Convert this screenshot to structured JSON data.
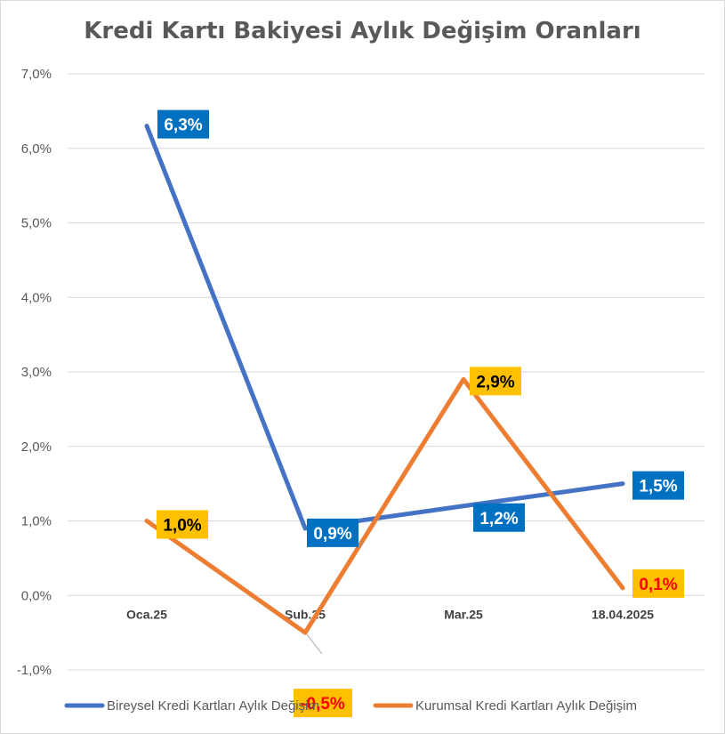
{
  "chart_data": {
    "type": "line",
    "title": "Kredi Kartı Bakiyesi Aylık Değişim Oranları",
    "categories": [
      "Oca.25",
      "Şub.25",
      "Mar.25",
      "18.04.2025"
    ],
    "yticks": [
      "-1,0%",
      "0,0%",
      "1,0%",
      "2,0%",
      "3,0%",
      "4,0%",
      "5,0%",
      "6,0%",
      "7,0%"
    ],
    "ylim": [
      -1,
      7
    ],
    "grid": true,
    "legend_position": "bottom",
    "series": [
      {
        "name": "Bireysel Kredi Kartları Aylık Değişim",
        "color": "#4472c4",
        "values": [
          6.3,
          0.9,
          1.2,
          1.5
        ],
        "labels": [
          "6,3%",
          "0,9%",
          "1,2%",
          "1,5%"
        ],
        "label_bg": "#0070c0",
        "label_colors": [
          "#ffffff",
          "#ffffff",
          "#ffffff",
          "#ffffff"
        ]
      },
      {
        "name": "Kurumsal Kredi Kartları Aylık Değişim",
        "color": "#ed7d31",
        "values": [
          1.0,
          -0.5,
          2.9,
          0.1
        ],
        "labels": [
          "1,0%",
          "-0,5%",
          "2,9%",
          "0,1%"
        ],
        "label_bg": "#ffc000",
        "label_colors": [
          "#000000",
          "#ff0000",
          "#000000",
          "#ff0000"
        ]
      }
    ]
  }
}
